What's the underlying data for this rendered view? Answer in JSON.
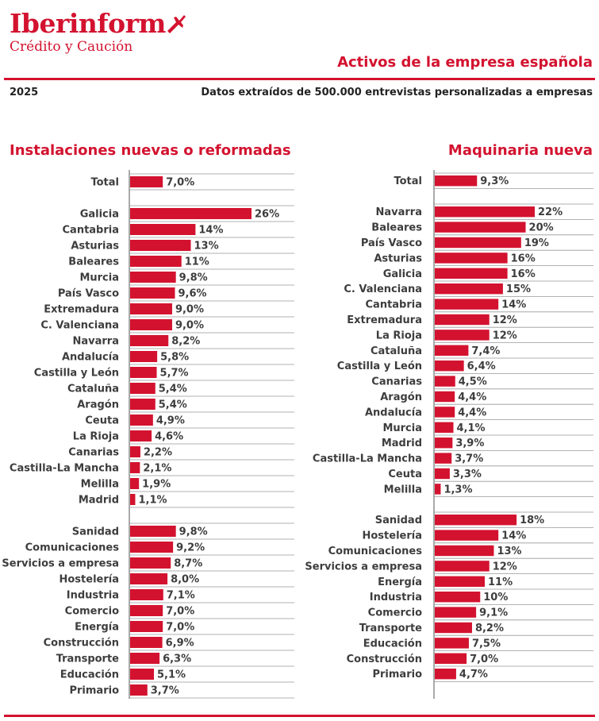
{
  "header": {
    "logo_name": "Iberinform",
    "logo_sub": "Crédito y Caución",
    "main_title": "Activos de la empresa española",
    "year": "2025",
    "subtitle": "Datos extraídos de 500.000 entrevistas personalizadas a empresas"
  },
  "colors": {
    "accent": "#d3122f",
    "text": "#3d3d3d",
    "axis": "#555555",
    "separator": "#999999"
  },
  "icons": {
    "logo_mark": "plane-icon"
  },
  "chart_data": [
    {
      "type": "bar",
      "orientation": "horizontal",
      "title": "Instalaciones nuevas o reformadas",
      "xlim": [
        0,
        26
      ],
      "unit": "%",
      "groups": [
        {
          "categories": [
            "Total"
          ],
          "values": [
            7.0
          ],
          "labels": [
            "7,0%"
          ]
        },
        {
          "categories": [
            "Galicia",
            "Cantabria",
            "Asturias",
            "Baleares",
            "Murcia",
            "País Vasco",
            "Extremadura",
            "C. Valenciana",
            "Navarra",
            "Andalucía",
            "Castilla y León",
            "Cataluña",
            "Aragón",
            "Ceuta",
            "La Rioja",
            "Canarias",
            "Castilla-La Mancha",
            "Melilla",
            "Madrid"
          ],
          "values": [
            26,
            14,
            13,
            11,
            9.8,
            9.6,
            9.0,
            9.0,
            8.2,
            5.8,
            5.7,
            5.4,
            5.4,
            4.9,
            4.6,
            2.2,
            2.1,
            1.9,
            1.1
          ],
          "labels": [
            "26%",
            "14%",
            "13%",
            "11%",
            "9,8%",
            "9,6%",
            "9,0%",
            "9,0%",
            "8,2%",
            "5,8%",
            "5,7%",
            "5,4%",
            "5,4%",
            "4,9%",
            "4,6%",
            "2,2%",
            "2,1%",
            "1,9%",
            "1,1%"
          ]
        },
        {
          "categories": [
            "Sanidad",
            "Comunicaciones",
            "Servicios a empresa",
            "Hostelería",
            "Industria",
            "Comercio",
            "Energía",
            "Construcción",
            "Transporte",
            "Educación",
            "Primario"
          ],
          "values": [
            9.8,
            9.2,
            8.7,
            8.0,
            7.1,
            7.0,
            7.0,
            6.9,
            6.3,
            5.1,
            3.7
          ],
          "labels": [
            "9,8%",
            "9,2%",
            "8,7%",
            "8,0%",
            "7,1%",
            "7,0%",
            "7,0%",
            "6,9%",
            "6,3%",
            "5,1%",
            "3,7%"
          ]
        }
      ]
    },
    {
      "type": "bar",
      "orientation": "horizontal",
      "title": "Maquinaria nueva",
      "xlim": [
        0,
        22
      ],
      "unit": "%",
      "groups": [
        {
          "categories": [
            "Total"
          ],
          "values": [
            9.3
          ],
          "labels": [
            "9,3%"
          ]
        },
        {
          "categories": [
            "Navarra",
            "Baleares",
            "País Vasco",
            "Asturias",
            "Galicia",
            "C. Valenciana",
            "Cantabria",
            "Extremadura",
            "La Rioja",
            "Cataluña",
            "Castilla y León",
            "Canarias",
            "Aragón",
            "Andalucía",
            "Murcia",
            "Madrid",
            "Castilla-La Mancha",
            "Ceuta",
            "Melilla"
          ],
          "values": [
            22,
            20,
            19,
            16,
            16,
            15,
            14,
            12,
            12,
            7.4,
            6.4,
            4.5,
            4.4,
            4.4,
            4.1,
            3.9,
            3.7,
            3.3,
            1.3
          ],
          "labels": [
            "22%",
            "20%",
            "19%",
            "16%",
            "16%",
            "15%",
            "14%",
            "12%",
            "12%",
            "7,4%",
            "6,4%",
            "4,5%",
            "4,4%",
            "4,4%",
            "4,1%",
            "3,9%",
            "3,7%",
            "3,3%",
            "1,3%"
          ]
        },
        {
          "categories": [
            "Sanidad",
            "Hostelería",
            "Comunicaciones",
            "Servicios a empresa",
            "Energía",
            "Industria",
            "Comercio",
            "Transporte",
            "Educación",
            "Construcción",
            "Primario"
          ],
          "values": [
            18,
            14,
            13,
            12,
            11,
            10,
            9.1,
            8.2,
            7.5,
            7.0,
            4.7
          ],
          "labels": [
            "18%",
            "14%",
            "13%",
            "12%",
            "11%",
            "10%",
            "9,1%",
            "8,2%",
            "7,5%",
            "7,0%",
            "4,7%"
          ]
        }
      ]
    }
  ]
}
